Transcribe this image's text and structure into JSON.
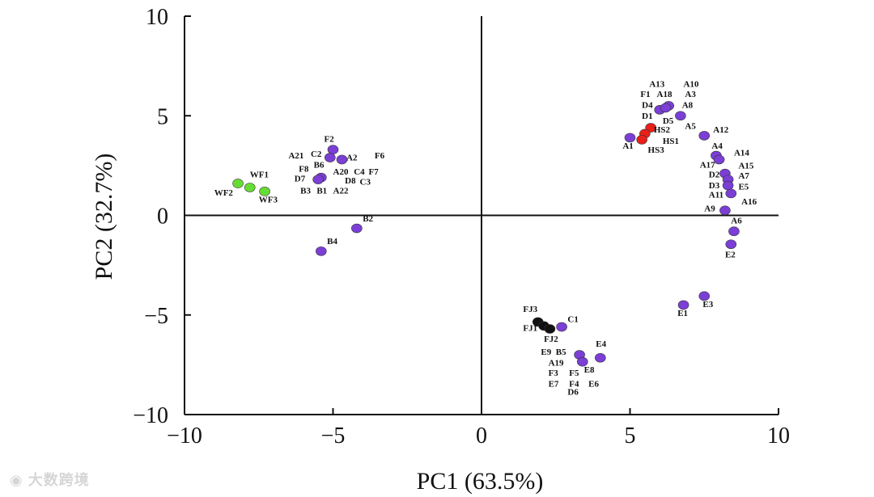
{
  "chart_data": {
    "type": "scatter",
    "xlabel": "PC1 (63.5%)",
    "ylabel": "PC2 (32.7%)",
    "xlim": [
      -10,
      10
    ],
    "ylim": [
      -10,
      10
    ],
    "xticks": [
      -10,
      -5,
      0,
      5,
      10
    ],
    "yticks": [
      -10,
      -5,
      0,
      5,
      10
    ],
    "xtick_labels": [
      "−10",
      "−5",
      "0",
      "5",
      "10"
    ],
    "ytick_labels": [
      "−10",
      "−5",
      "0",
      "5",
      "10"
    ],
    "colors": {
      "purple": "#7b3fd6",
      "green": "#66dd33",
      "red": "#e8201a",
      "black": "#111111"
    },
    "points": [
      {
        "x": -8.2,
        "y": 1.6,
        "c": "green"
      },
      {
        "x": -7.8,
        "y": 1.4,
        "c": "green"
      },
      {
        "x": -7.3,
        "y": 1.2,
        "c": "green"
      },
      {
        "x": -5.0,
        "y": 3.3,
        "c": "purple"
      },
      {
        "x": -5.1,
        "y": 2.9,
        "c": "purple"
      },
      {
        "x": -4.7,
        "y": 2.8,
        "c": "purple"
      },
      {
        "x": -5.4,
        "y": 1.9,
        "c": "purple"
      },
      {
        "x": -5.5,
        "y": 1.8,
        "c": "purple"
      },
      {
        "x": -4.2,
        "y": -0.65,
        "c": "purple"
      },
      {
        "x": -5.4,
        "y": -1.8,
        "c": "purple"
      },
      {
        "x": 6.3,
        "y": 5.5,
        "c": "purple"
      },
      {
        "x": 6.0,
        "y": 5.3,
        "c": "purple"
      },
      {
        "x": 6.2,
        "y": 5.4,
        "c": "purple"
      },
      {
        "x": 6.7,
        "y": 5.0,
        "c": "purple"
      },
      {
        "x": 5.7,
        "y": 4.4,
        "c": "red"
      },
      {
        "x": 5.5,
        "y": 4.1,
        "c": "red"
      },
      {
        "x": 5.4,
        "y": 3.8,
        "c": "red"
      },
      {
        "x": 5.0,
        "y": 3.9,
        "c": "purple"
      },
      {
        "x": 7.5,
        "y": 4.0,
        "c": "purple"
      },
      {
        "x": 7.9,
        "y": 3.0,
        "c": "purple"
      },
      {
        "x": 8.0,
        "y": 2.8,
        "c": "purple"
      },
      {
        "x": 8.2,
        "y": 2.1,
        "c": "purple"
      },
      {
        "x": 8.3,
        "y": 1.8,
        "c": "purple"
      },
      {
        "x": 8.3,
        "y": 1.5,
        "c": "purple"
      },
      {
        "x": 8.4,
        "y": 1.1,
        "c": "purple"
      },
      {
        "x": 8.2,
        "y": 0.25,
        "c": "purple"
      },
      {
        "x": 8.5,
        "y": -0.8,
        "c": "purple"
      },
      {
        "x": 8.4,
        "y": -1.45,
        "c": "purple"
      },
      {
        "x": 7.5,
        "y": -4.05,
        "c": "purple"
      },
      {
        "x": 6.8,
        "y": -4.5,
        "c": "purple"
      },
      {
        "x": 1.9,
        "y": -5.35,
        "c": "black"
      },
      {
        "x": 2.1,
        "y": -5.55,
        "c": "black"
      },
      {
        "x": 2.3,
        "y": -5.7,
        "c": "black"
      },
      {
        "x": 2.7,
        "y": -5.6,
        "c": "purple"
      },
      {
        "x": 3.3,
        "y": -7.0,
        "c": "purple"
      },
      {
        "x": 3.4,
        "y": -7.35,
        "c": "purple"
      },
      {
        "x": 4.0,
        "y": -7.15,
        "c": "purple"
      }
    ],
    "labels": [
      {
        "t": "WF1",
        "x": -7.8,
        "y": 1.9
      },
      {
        "t": "WF2",
        "x": -9.0,
        "y": 1.0
      },
      {
        "t": "WF3",
        "x": -7.5,
        "y": 0.65
      },
      {
        "t": "F2",
        "x": -5.3,
        "y": 3.7
      },
      {
        "t": "A21",
        "x": -6.5,
        "y": 2.85
      },
      {
        "t": "C2",
        "x": -5.75,
        "y": 2.95
      },
      {
        "t": "A2",
        "x": -4.55,
        "y": 2.75
      },
      {
        "t": "F6",
        "x": -3.6,
        "y": 2.85
      },
      {
        "t": "B6",
        "x": -5.65,
        "y": 2.4
      },
      {
        "t": "F8",
        "x": -6.15,
        "y": 2.2
      },
      {
        "t": "A20",
        "x": -5.0,
        "y": 2.05
      },
      {
        "t": "C4",
        "x": -4.3,
        "y": 2.05
      },
      {
        "t": "F7",
        "x": -3.8,
        "y": 2.05
      },
      {
        "t": "D7",
        "x": -6.3,
        "y": 1.7
      },
      {
        "t": "D8",
        "x": -4.6,
        "y": 1.6
      },
      {
        "t": "C3",
        "x": -4.1,
        "y": 1.55
      },
      {
        "t": "B3",
        "x": -6.1,
        "y": 1.1
      },
      {
        "t": "B1",
        "x": -5.55,
        "y": 1.1
      },
      {
        "t": "A22",
        "x": -5.0,
        "y": 1.1
      },
      {
        "t": "B2",
        "x": -4.0,
        "y": -0.3
      },
      {
        "t": "B4",
        "x": -5.2,
        "y": -1.45
      },
      {
        "t": "A13",
        "x": 5.65,
        "y": 6.45
      },
      {
        "t": "A10",
        "x": 6.8,
        "y": 6.45
      },
      {
        "t": "F1",
        "x": 5.35,
        "y": 5.95
      },
      {
        "t": "A18",
        "x": 5.9,
        "y": 5.95
      },
      {
        "t": "A3",
        "x": 6.85,
        "y": 5.95
      },
      {
        "t": "D4",
        "x": 5.4,
        "y": 5.4
      },
      {
        "t": "A8",
        "x": 6.75,
        "y": 5.4
      },
      {
        "t": "D1",
        "x": 5.4,
        "y": 4.85
      },
      {
        "t": "D5",
        "x": 6.1,
        "y": 4.6
      },
      {
        "t": "A5",
        "x": 6.85,
        "y": 4.35
      },
      {
        "t": "HS2",
        "x": 5.8,
        "y": 4.15
      },
      {
        "t": "A12",
        "x": 7.8,
        "y": 4.15
      },
      {
        "t": "HS1",
        "x": 6.1,
        "y": 3.6
      },
      {
        "t": "A1",
        "x": 4.75,
        "y": 3.35
      },
      {
        "t": "HS3",
        "x": 5.6,
        "y": 3.15
      },
      {
        "t": "A4",
        "x": 7.75,
        "y": 3.35
      },
      {
        "t": "A14",
        "x": 8.5,
        "y": 3.0
      },
      {
        "t": "A17",
        "x": 7.35,
        "y": 2.4
      },
      {
        "t": "A15",
        "x": 8.65,
        "y": 2.35
      },
      {
        "t": "D2",
        "x": 7.65,
        "y": 1.9
      },
      {
        "t": "A7",
        "x": 8.65,
        "y": 1.85
      },
      {
        "t": "D3",
        "x": 7.65,
        "y": 1.35
      },
      {
        "t": "E5",
        "x": 8.65,
        "y": 1.3
      },
      {
        "t": "A11",
        "x": 7.65,
        "y": 0.9
      },
      {
        "t": "A16",
        "x": 8.75,
        "y": 0.55
      },
      {
        "t": "A9",
        "x": 7.5,
        "y": 0.2
      },
      {
        "t": "A6",
        "x": 8.4,
        "y": -0.4
      },
      {
        "t": "E2",
        "x": 8.2,
        "y": -2.1
      },
      {
        "t": "E3",
        "x": 7.45,
        "y": -4.6
      },
      {
        "t": "E1",
        "x": 6.6,
        "y": -5.05
      },
      {
        "t": "FJ3",
        "x": 1.4,
        "y": -4.85
      },
      {
        "t": "C1",
        "x": 2.9,
        "y": -5.35
      },
      {
        "t": "FJ1",
        "x": 1.4,
        "y": -5.8
      },
      {
        "t": "FJ2",
        "x": 2.1,
        "y": -6.35
      },
      {
        "t": "E4",
        "x": 3.85,
        "y": -6.6
      },
      {
        "t": "E9",
        "x": 2.0,
        "y": -7.0
      },
      {
        "t": "B5",
        "x": 2.5,
        "y": -7.0
      },
      {
        "t": "A19",
        "x": 2.25,
        "y": -7.55
      },
      {
        "t": "E8",
        "x": 3.45,
        "y": -7.9
      },
      {
        "t": "F3",
        "x": 2.25,
        "y": -8.05
      },
      {
        "t": "F5",
        "x": 2.95,
        "y": -8.05
      },
      {
        "t": "E7",
        "x": 2.25,
        "y": -8.6
      },
      {
        "t": "F4",
        "x": 2.95,
        "y": -8.6
      },
      {
        "t": "E6",
        "x": 3.6,
        "y": -8.6
      },
      {
        "t": "D6",
        "x": 2.9,
        "y": -9.0
      }
    ]
  },
  "watermark": {
    "icon": "logo-mark-icon",
    "text": "大数跨境"
  }
}
